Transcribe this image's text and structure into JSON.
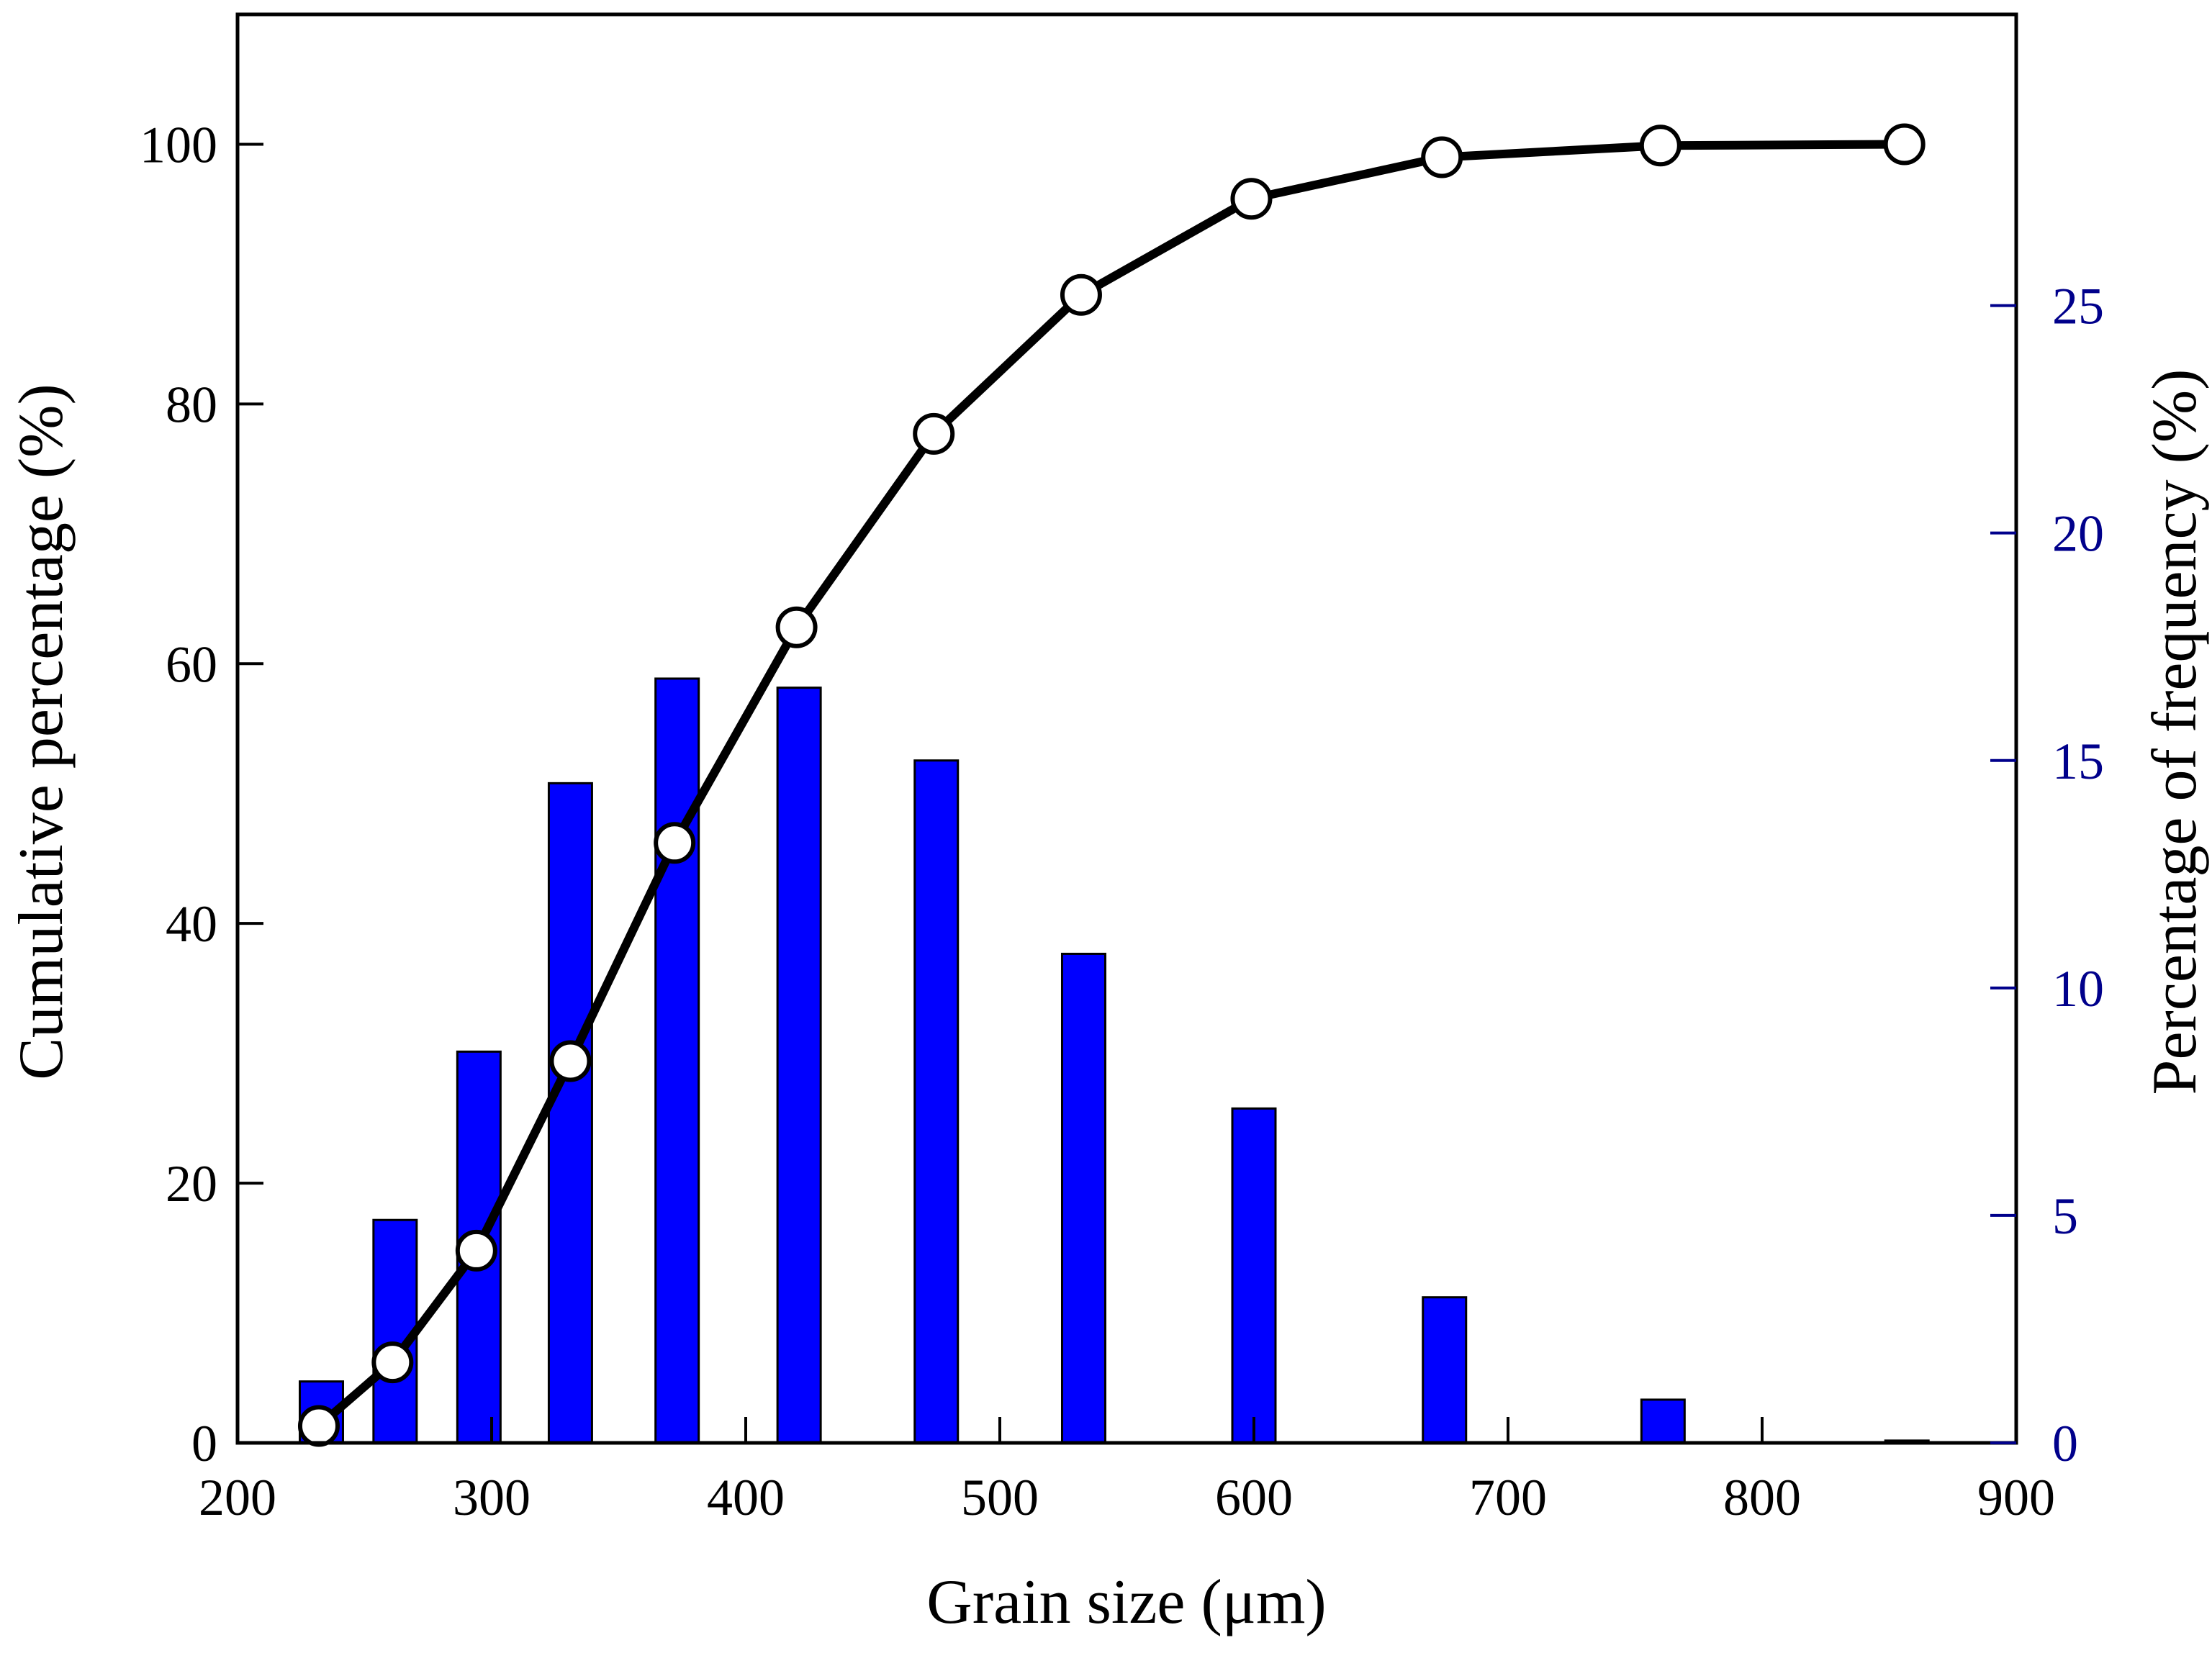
{
  "chart_data": {
    "type": "bar",
    "xlabel": "Grain size (μm)",
    "ylabel_left": "Cumulative percentage (%)",
    "ylabel_right": "Percentage of frequency (%)",
    "xlim": [
      200,
      900
    ],
    "ylim_left": [
      0,
      110
    ],
    "ylim_right": [
      0,
      31.4
    ],
    "x_ticks": [
      200,
      300,
      400,
      500,
      600,
      700,
      800,
      900
    ],
    "y_left_ticks": [
      0,
      20,
      40,
      60,
      80,
      100
    ],
    "y_right_ticks": [
      0,
      5,
      10,
      15,
      20,
      25
    ],
    "grid": false,
    "legend": "none",
    "series": [
      {
        "type": "bar",
        "axis": "right",
        "color": "#0000FF",
        "x": [
          233,
          262,
          295,
          331,
          373,
          421,
          475,
          533,
          600,
          675,
          761,
          857
        ],
        "values": [
          1.35,
          4.9,
          8.6,
          14.5,
          16.8,
          16.6,
          15.0,
          10.75,
          7.35,
          3.2,
          0.95,
          0.05
        ]
      },
      {
        "type": "line",
        "axis": "left",
        "color": "#000000",
        "marker": "open-circle",
        "x": [
          232,
          261,
          294,
          331,
          372,
          420,
          474,
          532,
          599,
          674,
          760,
          856
        ],
        "values": [
          1.3,
          6.2,
          14.8,
          29.4,
          46.2,
          62.8,
          77.7,
          88.4,
          95.8,
          99.0,
          99.9,
          100.0
        ]
      }
    ]
  }
}
